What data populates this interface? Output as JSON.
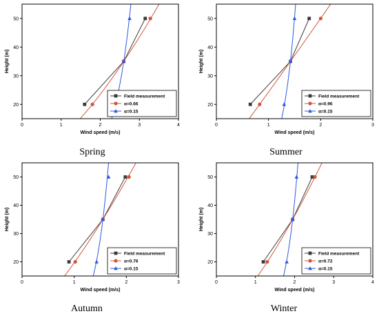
{
  "colors": {
    "field": "#3a3a3a",
    "fit": "#d2553a",
    "ref": "#2a57e0"
  },
  "chart_data": [
    {
      "type": "line",
      "caption": "Spring",
      "xlabel": "Wind speed (m/s)",
      "ylabel": "Height (m)",
      "xlim": [
        0,
        4
      ],
      "ylim": [
        15,
        55
      ],
      "xticks": [
        0,
        1,
        2,
        3,
        4
      ],
      "yticks": [
        20,
        30,
        40,
        50
      ],
      "legend_position": "bottom-right",
      "series": [
        {
          "name": "Field measurement",
          "marker": "square",
          "color": "#3a3a3a",
          "points": [
            [
              1.6,
              20
            ],
            [
              2.6,
              35
            ],
            [
              3.15,
              50
            ]
          ]
        },
        {
          "name": "α=0.66",
          "marker": "circle",
          "color": "#d2553a",
          "points": [
            [
              1.8,
              20
            ],
            [
              2.6,
              35
            ],
            [
              3.28,
              50
            ]
          ],
          "curve": {
            "exponent": 0.66,
            "anchor": [
              2.6,
              35
            ]
          }
        },
        {
          "name": "α=0.15",
          "marker": "triangle",
          "color": "#2a57e0",
          "points": [
            [
              2.4,
              20
            ],
            [
              2.6,
              35
            ],
            [
              2.75,
              50
            ]
          ],
          "curve": {
            "exponent": 0.15,
            "anchor": [
              2.6,
              35
            ]
          }
        }
      ]
    },
    {
      "type": "line",
      "caption": "Summer",
      "xlabel": "Wind speed (m/s)",
      "ylabel": "Height (m)",
      "xlim": [
        0,
        3
      ],
      "ylim": [
        15,
        55
      ],
      "xticks": [
        0,
        1,
        2,
        3
      ],
      "yticks": [
        20,
        30,
        40,
        50
      ],
      "legend_position": "bottom-right",
      "series": [
        {
          "name": "Field measurement",
          "marker": "square",
          "color": "#3a3a3a",
          "points": [
            [
              0.65,
              20
            ],
            [
              1.42,
              35
            ],
            [
              1.78,
              50
            ]
          ]
        },
        {
          "name": "α=0.96",
          "marker": "circle",
          "color": "#d2553a",
          "points": [
            [
              0.83,
              20
            ],
            [
              1.42,
              35
            ],
            [
              2.0,
              50
            ]
          ],
          "curve": {
            "exponent": 0.96,
            "anchor": [
              1.42,
              35
            ]
          }
        },
        {
          "name": "α=0.15",
          "marker": "triangle",
          "color": "#2a57e0",
          "points": [
            [
              1.3,
              20
            ],
            [
              1.42,
              35
            ],
            [
              1.5,
              50
            ]
          ],
          "curve": {
            "exponent": 0.15,
            "anchor": [
              1.42,
              35
            ]
          }
        }
      ]
    },
    {
      "type": "line",
      "caption": "Autumn",
      "xlabel": "Wind speed (m/s)",
      "ylabel": "Height (m)",
      "xlim": [
        0,
        3
      ],
      "ylim": [
        15,
        55
      ],
      "xticks": [
        0,
        1,
        2,
        3
      ],
      "yticks": [
        20,
        30,
        40,
        50
      ],
      "legend_position": "bottom-right",
      "series": [
        {
          "name": "Field measurement",
          "marker": "square",
          "color": "#3a3a3a",
          "points": [
            [
              0.9,
              20
            ],
            [
              1.55,
              35
            ],
            [
              1.98,
              50
            ]
          ]
        },
        {
          "name": "α=0.76",
          "marker": "circle",
          "color": "#d2553a",
          "points": [
            [
              1.02,
              20
            ],
            [
              1.55,
              35
            ],
            [
              2.05,
              50
            ]
          ],
          "curve": {
            "exponent": 0.76,
            "anchor": [
              1.55,
              35
            ]
          }
        },
        {
          "name": "α=0.15",
          "marker": "triangle",
          "color": "#2a57e0",
          "points": [
            [
              1.43,
              20
            ],
            [
              1.55,
              35
            ],
            [
              1.66,
              50
            ]
          ],
          "curve": {
            "exponent": 0.15,
            "anchor": [
              1.55,
              35
            ]
          }
        }
      ]
    },
    {
      "type": "line",
      "caption": "Winter",
      "xlabel": "Wind speed (m/s)",
      "ylabel": "Height (m)",
      "xlim": [
        0,
        4
      ],
      "ylim": [
        15,
        55
      ],
      "xticks": [
        0,
        1,
        2,
        3,
        4
      ],
      "yticks": [
        20,
        30,
        40,
        50
      ],
      "legend_position": "bottom-right",
      "series": [
        {
          "name": "Field measurement",
          "marker": "square",
          "color": "#3a3a3a",
          "points": [
            [
              1.2,
              20
            ],
            [
              1.95,
              35
            ],
            [
              2.45,
              50
            ]
          ]
        },
        {
          "name": "α=0.72",
          "marker": "circle",
          "color": "#d2553a",
          "points": [
            [
              1.3,
              20
            ],
            [
              1.95,
              35
            ],
            [
              2.52,
              50
            ]
          ],
          "curve": {
            "exponent": 0.72,
            "anchor": [
              1.95,
              35
            ]
          }
        },
        {
          "name": "α=0.15",
          "marker": "triangle",
          "color": "#2a57e0",
          "points": [
            [
              1.8,
              20
            ],
            [
              1.95,
              35
            ],
            [
              2.05,
              50
            ]
          ],
          "curve": {
            "exponent": 0.15,
            "anchor": [
              1.95,
              35
            ]
          }
        }
      ]
    }
  ]
}
